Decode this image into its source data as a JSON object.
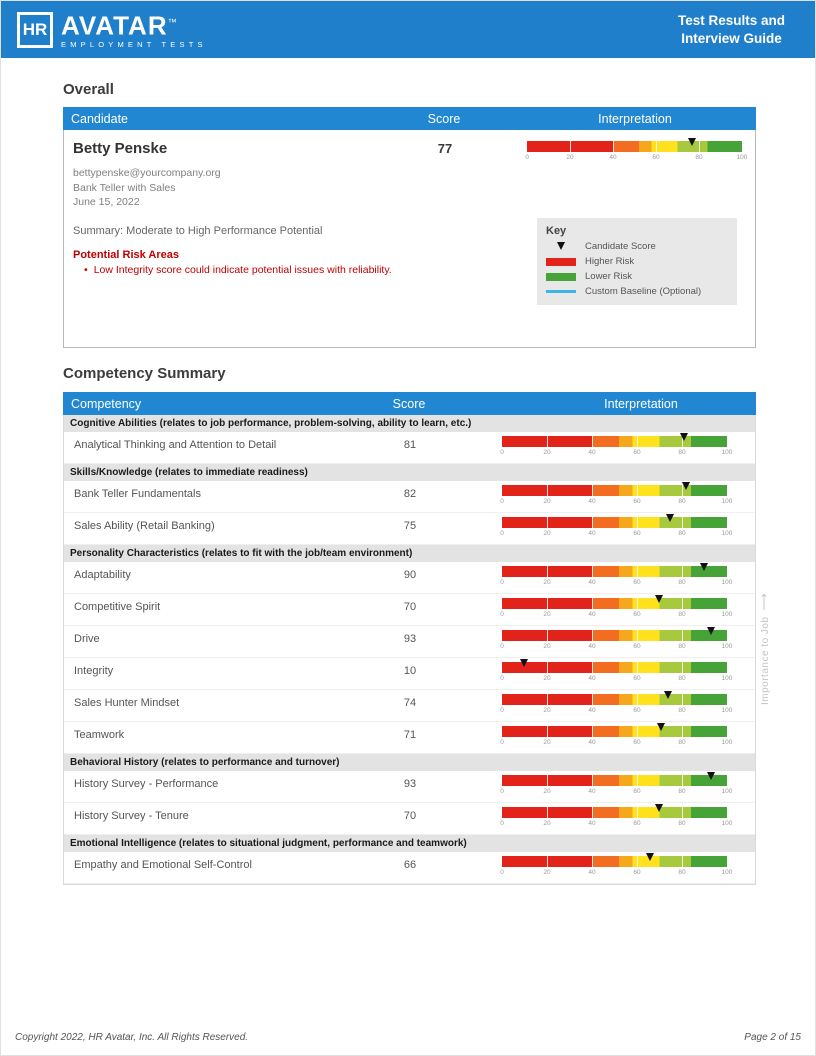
{
  "header": {
    "logo_hr": "HR",
    "logo_avatar": "AVATAR",
    "logo_tm": "™",
    "logo_tagline": "EMPLOYMENT TESTS",
    "title_line1": "Test Results and",
    "title_line2": "Interview Guide"
  },
  "overall": {
    "heading": "Overall",
    "columns": {
      "candidate": "Candidate",
      "score": "Score",
      "interpretation": "Interpretation"
    },
    "candidate": {
      "name": "Betty Penske",
      "email": "bettypenske@yourcompany.org",
      "job": "Bank Teller with Sales",
      "date": "June 15, 2022",
      "score": 77,
      "summary": "Summary: Moderate to High Performance Potential",
      "risk_heading": "Potential Risk Areas",
      "risk_bullet": "Low Integrity score could indicate potential issues with reliability."
    },
    "key": {
      "title": "Key",
      "items": [
        {
          "label": "Candidate Score",
          "swatch": "marker"
        },
        {
          "label": "Higher Risk",
          "swatch": "red"
        },
        {
          "label": "Lower Risk",
          "swatch": "green"
        },
        {
          "label": "Custom Baseline (Optional)",
          "swatch": "baseline"
        }
      ]
    }
  },
  "competency": {
    "heading": "Competency Summary",
    "columns": {
      "competency": "Competency",
      "score": "Score",
      "interpretation": "Interpretation"
    },
    "importance_label": "Importance to Job",
    "sections": [
      {
        "title": "Cognitive Abilities (relates to job performance, problem-solving, ability to learn, etc.)",
        "rows": [
          {
            "label": "Analytical Thinking and Attention to Detail",
            "score": 81
          }
        ]
      },
      {
        "title": "Skills/Knowledge (relates to immediate readiness)",
        "rows": [
          {
            "label": "Bank Teller Fundamentals",
            "score": 82
          },
          {
            "label": "Sales Ability (Retail Banking)",
            "score": 75
          }
        ]
      },
      {
        "title": "Personality Characteristics (relates to fit with the job/team environment)",
        "rows": [
          {
            "label": "Adaptability",
            "score": 90
          },
          {
            "label": "Competitive Spirit",
            "score": 70
          },
          {
            "label": "Drive",
            "score": 93
          },
          {
            "label": "Integrity",
            "score": 10
          },
          {
            "label": "Sales Hunter Mindset",
            "score": 74
          },
          {
            "label": "Teamwork",
            "score": 71
          }
        ]
      },
      {
        "title": "Behavioral History (relates to performance and turnover)",
        "rows": [
          {
            "label": "History Survey - Performance",
            "score": 93
          },
          {
            "label": "History Survey - Tenure",
            "score": 70
          }
        ]
      },
      {
        "title": "Emotional Intelligence (relates to situational judgment, performance and teamwork)",
        "rows": [
          {
            "label": "Empathy and Emotional Self-Control",
            "score": 66
          }
        ]
      }
    ]
  },
  "scale": {
    "ticks": [
      0,
      20,
      40,
      60,
      80,
      100
    ],
    "segments": [
      {
        "color": "#e2231a",
        "to": 40
      },
      {
        "color": "#f26c21",
        "to": 52
      },
      {
        "color": "#f6a81c",
        "to": 58
      },
      {
        "color": "#ffe11e",
        "to": 70
      },
      {
        "color": "#a6c93d",
        "to": 84
      },
      {
        "color": "#46a337",
        "to": 100
      }
    ],
    "higher_risk_color": "#e2231a",
    "lower_risk_color": "#46a337",
    "baseline_color": "#3fb4e6",
    "marker_color": "#111111"
  },
  "footer": {
    "copyright": "Copyright 2022, HR Avatar, Inc. All Rights Reserved.",
    "page": "Page 2 of 15"
  }
}
